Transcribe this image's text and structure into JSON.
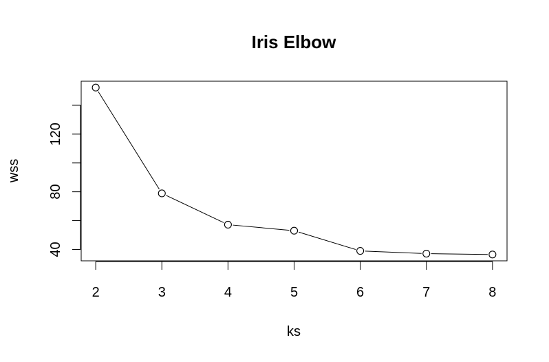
{
  "chart_data": {
    "type": "line",
    "title": "Iris Elbow",
    "xlabel": "ks",
    "ylabel": "wss",
    "x": [
      2,
      3,
      4,
      5,
      6,
      7,
      8
    ],
    "y": [
      152.3,
      78.9,
      57.2,
      53.0,
      39.0,
      37.1,
      36.5
    ],
    "x_ticks": [
      "2",
      "3",
      "4",
      "5",
      "6",
      "7",
      "8"
    ],
    "y_tick_values": [
      40,
      60,
      80,
      100,
      120,
      140
    ],
    "y_tick_labels": [
      "40",
      "",
      "80",
      "",
      "120",
      ""
    ],
    "xlim": [
      1.78,
      8.22
    ],
    "ylim": [
      32.1,
      156.7
    ],
    "marker": "open-circle",
    "grid": false,
    "colors": {
      "line": "#000000",
      "marker_fill": "#ffffff",
      "background": "#ffffff"
    }
  }
}
